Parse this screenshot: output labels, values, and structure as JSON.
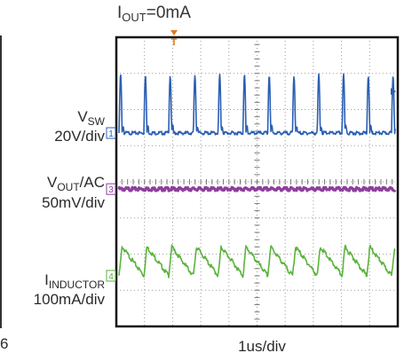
{
  "title": {
    "main": "I",
    "sub": "OUT",
    "rest": "=0mA"
  },
  "chart_data": {
    "type": "line",
    "title": "IOUT=0mA",
    "xlabel": "1us/div",
    "x_divisions": 10,
    "y_divisions": 8,
    "time_per_div_us": 1,
    "grid": true,
    "series": [
      {
        "name": "VSW",
        "label_main": "V",
        "label_sub": "SW",
        "scale": "20V/div",
        "marker": "1",
        "color": "#2b5fb3",
        "baseline_div": 5.35,
        "waveform": "pulse",
        "period_div": 0.88,
        "phase_div": 0.1,
        "amplitude_div": 1.6
      },
      {
        "name": "VOUT/AC",
        "label_main": "V",
        "label_sub": "OUT",
        "label_rest": "/AC",
        "scale": "50mV/div",
        "marker": "3",
        "color": "#8e3f9c",
        "baseline_div": 3.8,
        "waveform": "flat",
        "period_div": 0.88,
        "phase_div": 0.1,
        "amplitude_div": 0.05
      },
      {
        "name": "IINDUCTOR",
        "label_main": "I",
        "label_sub": "INDUCTOR",
        "scale": "100mA/div",
        "marker": "4",
        "color": "#5bb33c",
        "baseline_div": 1.4,
        "waveform": "sawtooth",
        "period_div": 0.88,
        "phase_div": 0.1,
        "amplitude_div": 0.8
      }
    ],
    "trigger_marker": "T",
    "trigger_color": "#e07a1f",
    "stray_text": "6"
  }
}
